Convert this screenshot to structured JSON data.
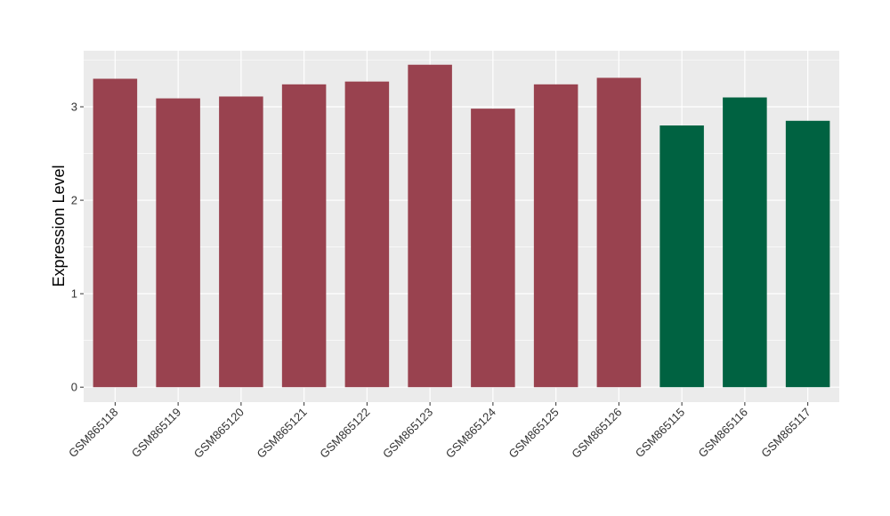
{
  "chart_data": {
    "type": "bar",
    "title": "",
    "xlabel": "",
    "ylabel": "Expression Level",
    "categories": [
      "GSM865118",
      "GSM865119",
      "GSM865120",
      "GSM865121",
      "GSM865122",
      "GSM865123",
      "GSM865124",
      "GSM865125",
      "GSM865126",
      "GSM865115",
      "GSM865116",
      "GSM865117"
    ],
    "values": [
      3.3,
      3.09,
      3.11,
      3.24,
      3.27,
      3.45,
      2.98,
      3.24,
      3.31,
      2.8,
      3.1,
      2.85
    ],
    "bar_colors": [
      "#99424F",
      "#99424F",
      "#99424F",
      "#99424F",
      "#99424F",
      "#99424F",
      "#99424F",
      "#99424F",
      "#99424F",
      "#006241",
      "#006241",
      "#006241"
    ],
    "ylim": [
      -0.16,
      3.6
    ],
    "yticks": [
      0,
      1,
      2,
      3
    ],
    "grid": true,
    "panel_background": "#EBEBEB",
    "gridline_color": "#FFFFFF"
  }
}
